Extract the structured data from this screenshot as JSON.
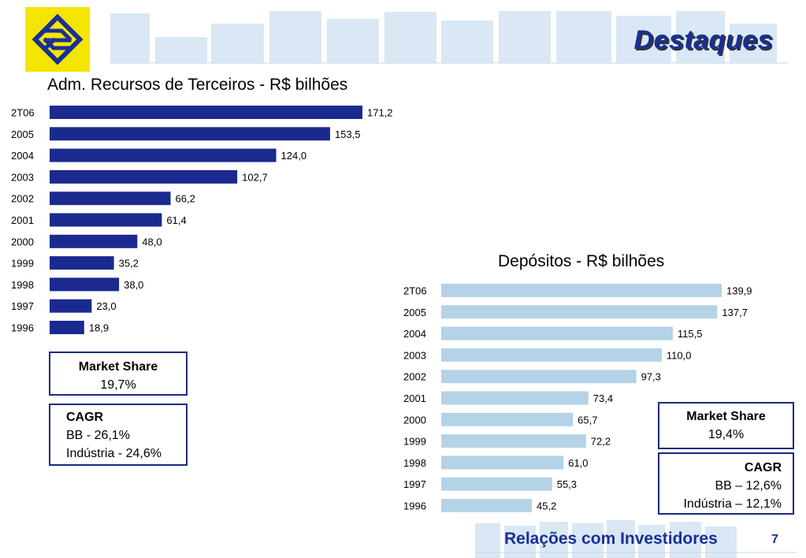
{
  "header": {
    "title": "Destaques"
  },
  "chart_data": [
    {
      "type": "bar",
      "orientation": "horizontal",
      "title": "Adm. Recursos de Terceiros - R$ bilhões",
      "categories": [
        "2T06",
        "2005",
        "2004",
        "2003",
        "2002",
        "2001",
        "2000",
        "1999",
        "1998",
        "1997",
        "1996"
      ],
      "values": [
        171.2,
        153.5,
        124.0,
        102.7,
        66.2,
        61.4,
        48.0,
        35.2,
        38.0,
        23.0,
        18.9
      ],
      "labels": [
        "171,2",
        "153,5",
        "124,0",
        "102,7",
        "66,2",
        "61,4",
        "48,0",
        "35,2",
        "38,0",
        "23,0",
        "18,9"
      ],
      "color": "#1b2a8f",
      "grid": false
    },
    {
      "type": "bar",
      "orientation": "horizontal",
      "title": "Depósitos - R$ bilhões",
      "categories": [
        "2T06",
        "2005",
        "2004",
        "2003",
        "2002",
        "2001",
        "2000",
        "1999",
        "1998",
        "1997",
        "1996"
      ],
      "values": [
        139.9,
        137.7,
        115.5,
        110.0,
        97.3,
        73.4,
        65.7,
        72.2,
        61.0,
        55.3,
        45.2
      ],
      "labels": [
        "139,9",
        "137,7",
        "115,5",
        "110,0",
        "97,3",
        "73,4",
        "65,7",
        "72,2",
        "61,0",
        "55,3",
        "45,2"
      ],
      "color": "#b5d3e6",
      "grid": false
    }
  ],
  "boxes": {
    "chart1_market_share": {
      "label": "Market Share",
      "value": "19,7%"
    },
    "chart1_cagr": {
      "label": "CAGR",
      "bb": "BB - 26,1%",
      "industry": "Indústria - 24,6%"
    },
    "chart2_market_share": {
      "label": "Market Share",
      "value": "19,4%"
    },
    "chart2_cagr": {
      "label": "CAGR",
      "bb": "BB – 12,6%",
      "industry": "Indústria – 12,1%"
    }
  },
  "footer": {
    "text": "Relações com Investidores",
    "page": "7"
  },
  "colors": {
    "brand_blue": "#1a2f96",
    "logo_yellow": "#f4e600",
    "deco_light_blue": "#d6e7f3"
  }
}
